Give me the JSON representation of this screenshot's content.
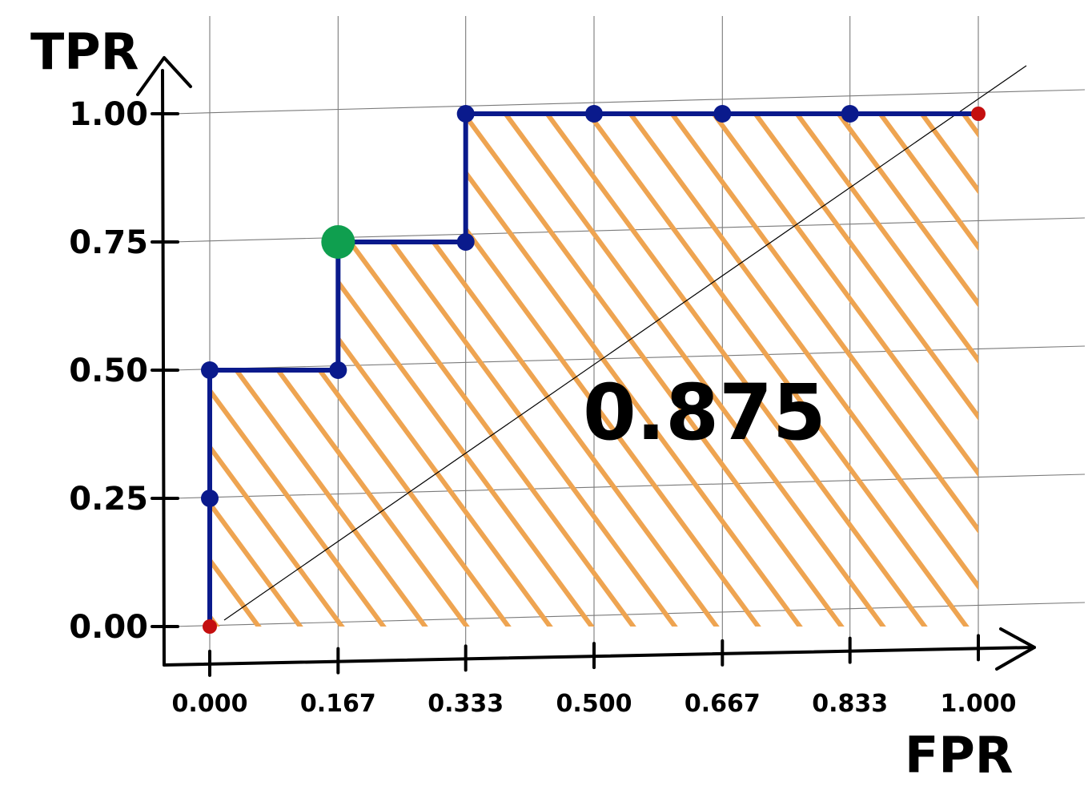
{
  "chart_data": {
    "type": "line",
    "xlabel": "FPR",
    "ylabel": "TPR",
    "xlim": [
      0,
      1
    ],
    "ylim": [
      0,
      1
    ],
    "x_ticks": [
      "0.000",
      "0.167",
      "0.333",
      "0.500",
      "0.667",
      "0.833",
      "1.000"
    ],
    "y_ticks": [
      "0.00",
      "0.25",
      "0.50",
      "0.75",
      "1.00"
    ],
    "grid": true,
    "area_fill": "hatched",
    "annotation": "0.875",
    "series": [
      {
        "type": "roc",
        "points": [
          {
            "x": 0.0,
            "y": 0.0
          },
          {
            "x": 0.0,
            "y": 0.25
          },
          {
            "x": 0.0,
            "y": 0.5
          },
          {
            "x": 0.167,
            "y": 0.5
          },
          {
            "x": 0.167,
            "y": 0.75
          },
          {
            "x": 0.333,
            "y": 0.75
          },
          {
            "x": 0.333,
            "y": 1.0
          },
          {
            "x": 0.5,
            "y": 1.0
          },
          {
            "x": 0.667,
            "y": 1.0
          },
          {
            "x": 0.833,
            "y": 1.0
          },
          {
            "x": 1.0,
            "y": 1.0
          }
        ],
        "highlight_index": 4
      },
      {
        "type": "reference-diagonal",
        "points": [
          {
            "x": 0,
            "y": 0
          },
          {
            "x": 1,
            "y": 1
          }
        ]
      }
    ],
    "colors": {
      "curve": "#0a1a8c",
      "highlight": "#0f9f4f",
      "endpoint": "#c40f0f",
      "hatch": "#eea451",
      "grid": "#7a7a7a",
      "axis": "#000000"
    }
  }
}
